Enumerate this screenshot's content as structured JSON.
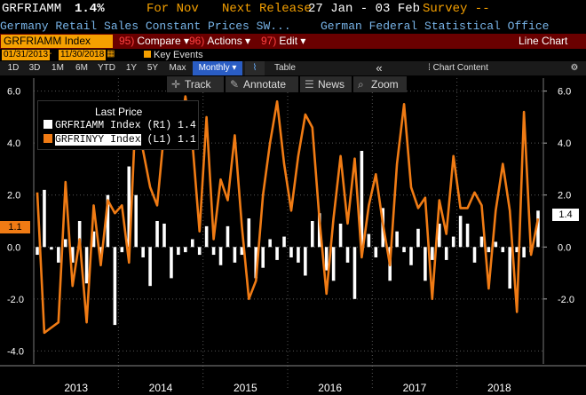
{
  "header": {
    "ticker": "GRFRIAMM",
    "value": "1.4%",
    "period": "For Nov",
    "next_release_label": "Next Release",
    "next_release_dates": "27 Jan - 03 Feb",
    "survey": "Survey --",
    "description": "Germany Retail Sales Constant Prices SW...",
    "source": "German Federal Statistical Office"
  },
  "command_bar": {
    "security": "GRFRIAMM Index",
    "compare_num": "95)",
    "compare": "Compare",
    "actions_num": "96)",
    "actions": "Actions",
    "edit_num": "97)",
    "edit": "Edit",
    "chart_type": "Line Chart"
  },
  "date_range": {
    "start": "01/31/2013",
    "end": "11/30/2018",
    "key_events": "Key Events"
  },
  "tabs": {
    "ranges": [
      "1D",
      "3D",
      "1M",
      "6M",
      "YTD",
      "1Y",
      "5Y",
      "Max"
    ],
    "frequency": "Monthly",
    "table": "Table",
    "collapse": "«",
    "chart_content": "Chart Content"
  },
  "tools": {
    "track": "Track",
    "annotate": "Annotate",
    "news": "News",
    "zoom": "Zoom"
  },
  "legend": {
    "title": "Last Price",
    "row1": {
      "name": "GRFRIAMM Index",
      "axis": "(R1)",
      "value": "1.4"
    },
    "row2": {
      "name": "GRFRINYY Index",
      "axis": "(L1)",
      "value": "1.1"
    }
  },
  "colors": {
    "line": "#f07b14",
    "bars": "#ffffff",
    "accent": "#f5a000",
    "command_bar": "#6a0000"
  },
  "chart_data": {
    "type": "bar",
    "x_range": [
      "2013-01",
      "2018-11"
    ],
    "xticks": [
      "2013",
      "2014",
      "2015",
      "2016",
      "2017",
      "2018"
    ],
    "left_yticks": [
      "6.0",
      "4.0",
      "2.0",
      "0.0",
      "-2.0",
      "-4.0"
    ],
    "right_yticks": [
      "6.0",
      "4.0",
      "2.0",
      "0.0",
      "-2.0"
    ],
    "ylim_left": [
      -4.5,
      6.5
    ],
    "ylim_right": [
      -4.5,
      6.5
    ],
    "last_left": "1.1",
    "last_right": "1.4",
    "series": [
      {
        "name": "GRFRIAMM Index",
        "type": "bar",
        "axis": "R1",
        "values": [
          -0.3,
          2.2,
          -0.1,
          -0.6,
          0.3,
          -0.6,
          1.0,
          -1.4,
          0.6,
          -0.4,
          2.0,
          -3.0,
          -0.2,
          3.1,
          2.0,
          -0.4,
          -1.5,
          1.0,
          0.9,
          -1.2,
          -0.3,
          -0.2,
          0.3,
          -0.3,
          0.8,
          -0.3,
          -0.7,
          0.8,
          -0.6,
          -0.3,
          1.1,
          -1.2,
          -0.8,
          0.3,
          -0.5,
          0.4,
          -0.4,
          -0.6,
          -1.1,
          1.0,
          1.3,
          -0.9,
          -1.3,
          0.9,
          -0.6,
          -2.0,
          3.7,
          0.5,
          -0.4,
          1.5,
          -1.3,
          0.6,
          -0.2,
          -0.7,
          0.7,
          -1.3,
          -0.5,
          0.9,
          -0.5,
          0.4,
          1.2,
          0.9,
          -0.6,
          0.4,
          -0.2,
          0.2,
          -0.2,
          -1.6,
          -0.2,
          -0.4,
          -0.2,
          1.4
        ]
      },
      {
        "name": "GRFRINYY Index",
        "type": "line",
        "axis": "L1",
        "values": [
          2.1,
          -3.3,
          -3.1,
          -2.9,
          2.5,
          -1.5,
          0.3,
          -2.9,
          1.6,
          -0.7,
          1.8,
          1.3,
          1.6,
          -0.6,
          5.5,
          3.7,
          2.3,
          1.6,
          4.5,
          3.8,
          3.8,
          5.8,
          4.0,
          0.6,
          5.0,
          0.3,
          2.6,
          1.8,
          4.3,
          0.8,
          -2.0,
          -1.3,
          2.0,
          4.0,
          5.6,
          3.2,
          1.4,
          3.5,
          5.1,
          4.6,
          1.1,
          -1.8,
          1.1,
          3.5,
          0.9,
          3.4,
          -0.4,
          1.6,
          2.8,
          0.9,
          -0.7,
          3.2,
          5.5,
          2.3,
          1.5,
          1.9,
          -2.0,
          1.8,
          0.5,
          3.5,
          1.5,
          1.5,
          2.1,
          1.6,
          -1.6,
          1.4,
          3.2,
          1.4,
          -2.5,
          5.2,
          -0.3,
          1.1
        ]
      }
    ]
  }
}
